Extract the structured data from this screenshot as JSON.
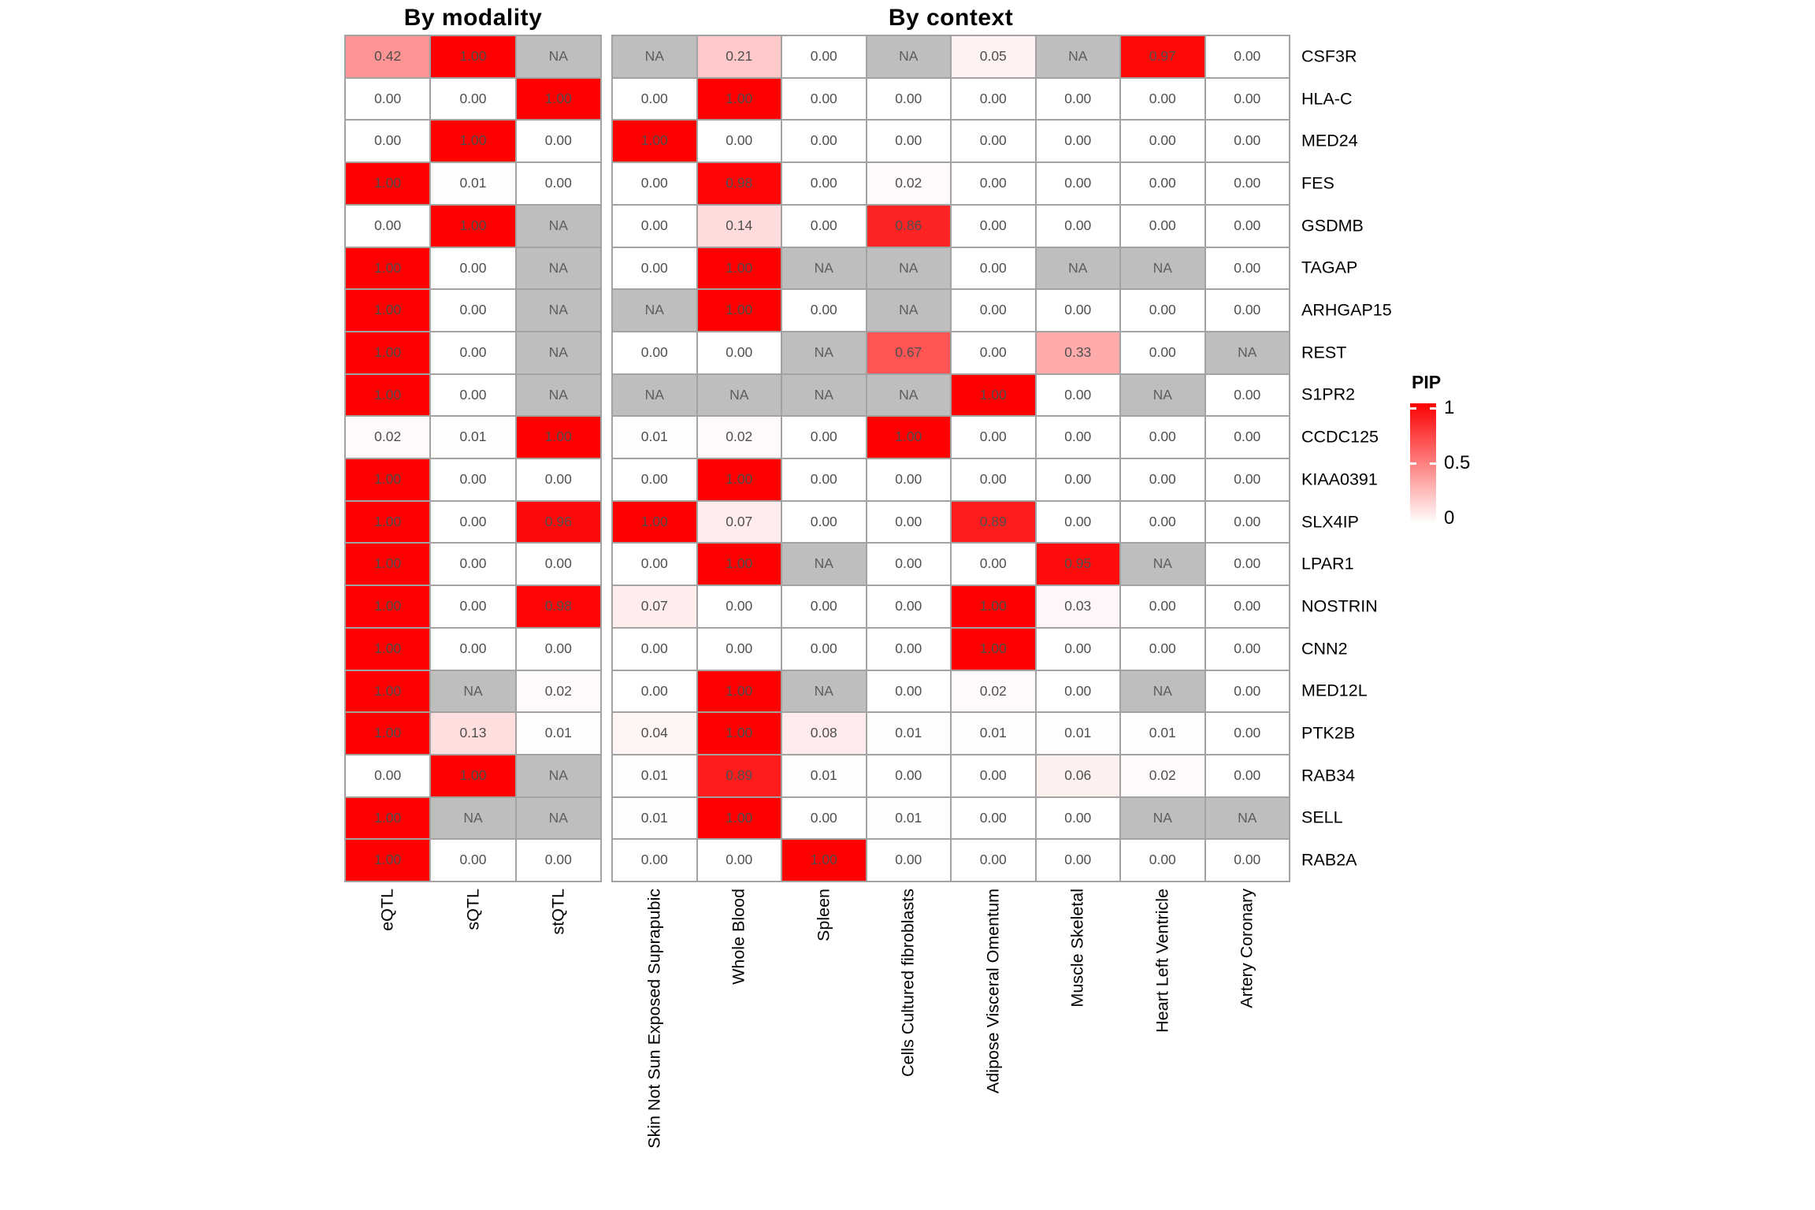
{
  "chart_data": {
    "type": "heatmap",
    "rows": [
      "CSF3R",
      "HLA-C",
      "MED24",
      "FES",
      "GSDMB",
      "TAGAP",
      "ARHGAP15",
      "REST",
      "S1PR2",
      "CCDC125",
      "KIAA0391",
      "SLX4IP",
      "LPAR1",
      "NOSTRIN",
      "CNN2",
      "MED12L",
      "PTK2B",
      "RAB34",
      "SELL",
      "RAB2A"
    ],
    "na_label": "NA",
    "panels": [
      {
        "title": "By modality",
        "columns": [
          "eQTL",
          "sQTL",
          "stQTL"
        ],
        "values": [
          [
            "0.42",
            "1.00",
            "NA"
          ],
          [
            "0.00",
            "0.00",
            "1.00"
          ],
          [
            "0.00",
            "1.00",
            "0.00"
          ],
          [
            "1.00",
            "0.01",
            "0.00"
          ],
          [
            "0.00",
            "1.00",
            "NA"
          ],
          [
            "1.00",
            "0.00",
            "NA"
          ],
          [
            "1.00",
            "0.00",
            "NA"
          ],
          [
            "1.00",
            "0.00",
            "NA"
          ],
          [
            "1.00",
            "0.00",
            "NA"
          ],
          [
            "0.02",
            "0.01",
            "1.00"
          ],
          [
            "1.00",
            "0.00",
            "0.00"
          ],
          [
            "1.00",
            "0.00",
            "0.96"
          ],
          [
            "1.00",
            "0.00",
            "0.00"
          ],
          [
            "1.00",
            "0.00",
            "0.98"
          ],
          [
            "1.00",
            "0.00",
            "0.00"
          ],
          [
            "1.00",
            "NA",
            "0.02"
          ],
          [
            "1.00",
            "0.13",
            "0.01"
          ],
          [
            "0.00",
            "1.00",
            "NA"
          ],
          [
            "1.00",
            "NA",
            "NA"
          ],
          [
            "1.00",
            "0.00",
            "0.00"
          ]
        ]
      },
      {
        "title": "By context",
        "columns": [
          "Skin Not Sun Exposed Suprapubic",
          "Whole Blood",
          "Spleen",
          "Cells Cultured fibroblasts",
          "Adipose Visceral Omentum",
          "Muscle Skeletal",
          "Heart Left Ventricle",
          "Artery Coronary"
        ],
        "values": [
          [
            "NA",
            "0.21",
            "0.00",
            "NA",
            "0.05",
            "NA",
            "0.97",
            "0.00"
          ],
          [
            "0.00",
            "1.00",
            "0.00",
            "0.00",
            "0.00",
            "0.00",
            "0.00",
            "0.00"
          ],
          [
            "1.00",
            "0.00",
            "0.00",
            "0.00",
            "0.00",
            "0.00",
            "0.00",
            "0.00"
          ],
          [
            "0.00",
            "0.98",
            "0.00",
            "0.02",
            "0.00",
            "0.00",
            "0.00",
            "0.00"
          ],
          [
            "0.00",
            "0.14",
            "0.00",
            "0.86",
            "0.00",
            "0.00",
            "0.00",
            "0.00"
          ],
          [
            "0.00",
            "1.00",
            "NA",
            "NA",
            "0.00",
            "NA",
            "NA",
            "0.00"
          ],
          [
            "NA",
            "1.00",
            "0.00",
            "NA",
            "0.00",
            "0.00",
            "0.00",
            "0.00"
          ],
          [
            "0.00",
            "0.00",
            "NA",
            "0.67",
            "0.00",
            "0.33",
            "0.00",
            "NA"
          ],
          [
            "NA",
            "NA",
            "NA",
            "NA",
            "1.00",
            "0.00",
            "NA",
            "0.00"
          ],
          [
            "0.01",
            "0.02",
            "0.00",
            "1.00",
            "0.00",
            "0.00",
            "0.00",
            "0.00"
          ],
          [
            "0.00",
            "1.00",
            "0.00",
            "0.00",
            "0.00",
            "0.00",
            "0.00",
            "0.00"
          ],
          [
            "1.00",
            "0.07",
            "0.00",
            "0.00",
            "0.89",
            "0.00",
            "0.00",
            "0.00"
          ],
          [
            "0.00",
            "1.00",
            "NA",
            "0.00",
            "0.00",
            "0.95",
            "NA",
            "0.00"
          ],
          [
            "0.07",
            "0.00",
            "0.00",
            "0.00",
            "1.00",
            "0.03",
            "0.00",
            "0.00"
          ],
          [
            "0.00",
            "0.00",
            "0.00",
            "0.00",
            "1.00",
            "0.00",
            "0.00",
            "0.00"
          ],
          [
            "0.00",
            "1.00",
            "NA",
            "0.00",
            "0.02",
            "0.00",
            "NA",
            "0.00"
          ],
          [
            "0.04",
            "1.00",
            "0.08",
            "0.01",
            "0.01",
            "0.01",
            "0.01",
            "0.00"
          ],
          [
            "0.01",
            "0.89",
            "0.01",
            "0.00",
            "0.00",
            "0.06",
            "0.02",
            "0.00"
          ],
          [
            "0.01",
            "1.00",
            "0.00",
            "0.01",
            "0.00",
            "0.00",
            "NA",
            "NA"
          ],
          [
            "0.00",
            "0.00",
            "1.00",
            "0.00",
            "0.00",
            "0.00",
            "0.00",
            "0.00"
          ]
        ]
      }
    ],
    "legend": {
      "title": "PIP",
      "ticks": [
        "1",
        "0.5",
        "0"
      ],
      "range": [
        0,
        1
      ],
      "orientation": "vertical-right"
    }
  },
  "colors": {
    "high": "#FC0000",
    "low": "#FFFFFF",
    "na_fill": "#BEBEBE",
    "grid_line": "#A2A2A2",
    "cell_text": "#4F4F4F",
    "na_text": "#5D5D5D",
    "label_text": "#000000"
  }
}
